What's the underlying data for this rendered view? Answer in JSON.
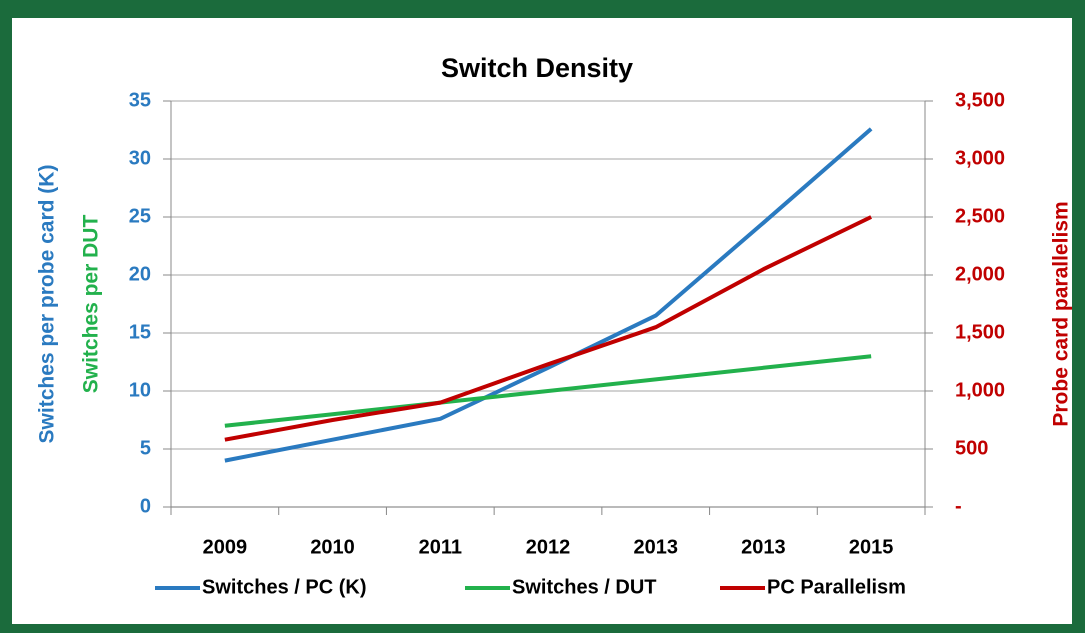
{
  "chart_data": {
    "type": "line",
    "title": "Switch Density",
    "y_label": "Switches per probe card (K)",
    "y_label_2": "Switches per DUT",
    "y2_label": "Probe card parallelism",
    "categories": [
      "2009",
      "2010",
      "2011",
      "2012",
      "2013",
      "2013",
      "2015"
    ],
    "series": [
      {
        "name": "Switches / PC (K)",
        "color": "#2a7ac0",
        "values": [
          4,
          5.8,
          7.6,
          12,
          16.5,
          24.5,
          32.6
        ]
      },
      {
        "name": "Switches / DUT",
        "color": "#22b14c",
        "values": [
          7,
          8,
          9,
          10,
          11,
          12,
          13
        ]
      },
      {
        "name": "PC Parallelism",
        "color": "#c00000",
        "axis": "y2",
        "values": [
          580,
          750,
          900,
          1230,
          1550,
          2050,
          2500
        ]
      }
    ],
    "ylim": [
      0,
      35
    ],
    "yticks": [
      0,
      5,
      10,
      15,
      20,
      25,
      30,
      35
    ],
    "y2lim": [
      0,
      3500
    ],
    "y2ticks": [
      {
        "value": 0,
        "label": "-"
      },
      500,
      {
        "value": 1000,
        "label": "1,000"
      },
      {
        "value": 1500,
        "label": "1,500"
      },
      {
        "value": 2000,
        "label": "2,000"
      },
      {
        "value": 2500,
        "label": "2,500"
      },
      {
        "value": 3000,
        "label": "3,000"
      },
      {
        "value": 3500,
        "label": "3,500"
      }
    ],
    "grid": true,
    "legend": "bottom"
  }
}
